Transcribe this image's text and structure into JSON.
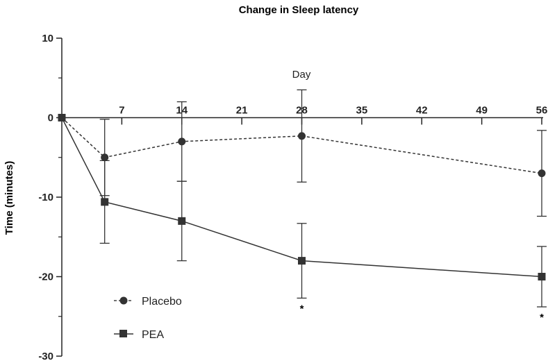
{
  "chart_data": {
    "type": "line",
    "title": "Change in Sleep latency",
    "xlabel": "Day",
    "ylabel": "Time (minutes)",
    "x_ticks": [
      "7",
      "14",
      "21",
      "28",
      "35",
      "42",
      "49",
      "56"
    ],
    "y_ticks": [
      "10",
      "0",
      "-10",
      "-20",
      "-30"
    ],
    "xlim": [
      0,
      56
    ],
    "ylim": [
      -30,
      10
    ],
    "grid": false,
    "legend_position": "bottom-left",
    "series": [
      {
        "name": "Placebo",
        "marker": "circle",
        "line_style": "dashed",
        "points": [
          {
            "x": 0,
            "y": 0,
            "err": null
          },
          {
            "x": 5,
            "y": -5,
            "err": 4.8
          },
          {
            "x": 14,
            "y": -3,
            "err": 5
          },
          {
            "x": 28,
            "y": -2.3,
            "err": 5.8
          },
          {
            "x": 56,
            "y": -7,
            "err": 5.4
          }
        ]
      },
      {
        "name": "PEA",
        "marker": "square",
        "line_style": "solid",
        "points": [
          {
            "x": 0,
            "y": 0,
            "err": null
          },
          {
            "x": 5,
            "y": -10.6,
            "err": 5.2
          },
          {
            "x": 14,
            "y": -13,
            "err": 5
          },
          {
            "x": 28,
            "y": -18,
            "err": 4.7
          },
          {
            "x": 56,
            "y": -20,
            "err": 3.8
          }
        ]
      }
    ],
    "annotations": [
      {
        "text": "*",
        "x": 28
      },
      {
        "text": "*",
        "x": 56
      }
    ]
  }
}
